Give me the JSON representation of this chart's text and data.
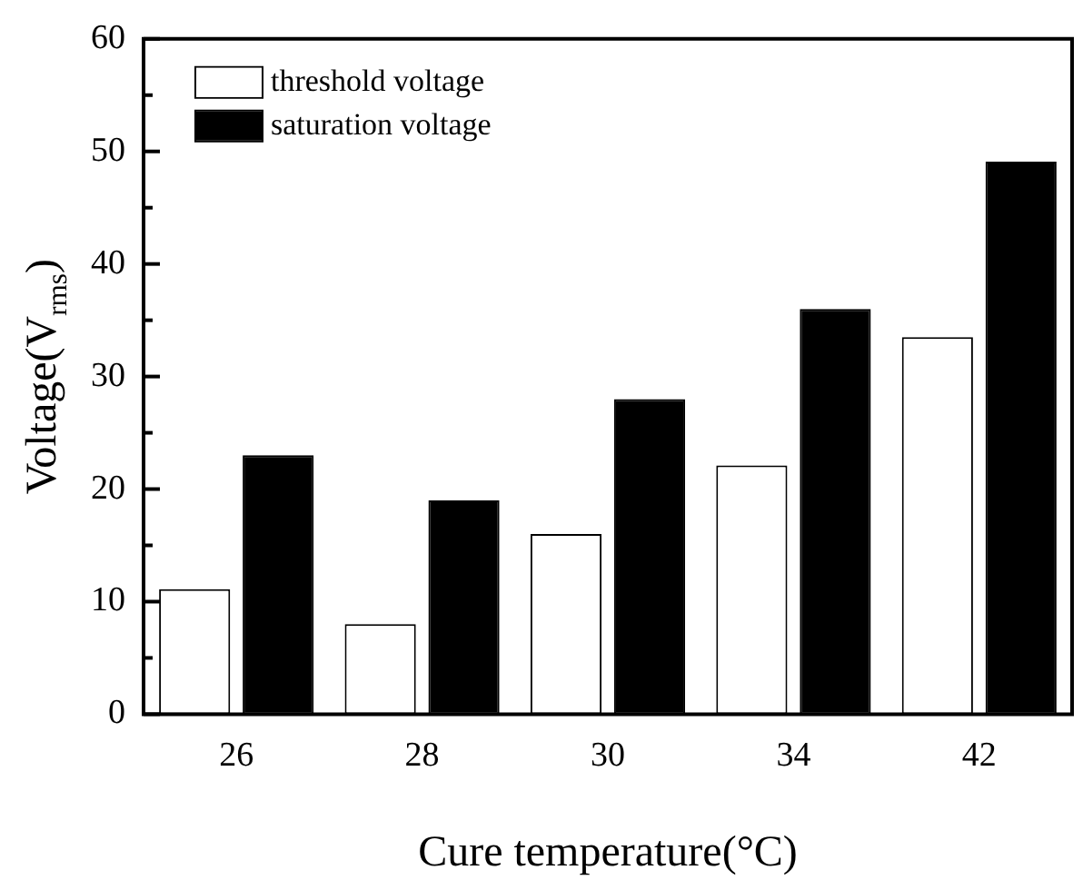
{
  "chart_data": {
    "type": "bar",
    "xlabel": "Cure temperature(°C)",
    "ylabel": "Voltage(V$_{rms}$)",
    "categories": [
      "26",
      "28",
      "30",
      "34",
      "42"
    ],
    "series": [
      {
        "name": "threshold voltage",
        "color": "#ffffff",
        "values": [
          11.1,
          8,
          16,
          22.1,
          33.5
        ]
      },
      {
        "name": "saturation voltage",
        "color": "#000000",
        "values": [
          23,
          19,
          28,
          36,
          49.1
        ]
      }
    ],
    "ylim": [
      0,
      60
    ],
    "yticks": [
      0,
      {
        "value": 5,
        "label": null
      },
      10,
      {
        "value": 15,
        "label": null
      },
      20,
      {
        "value": 25,
        "label": null
      },
      30,
      {
        "value": 35,
        "label": null
      },
      40,
      {
        "value": 45,
        "label": null
      },
      50,
      {
        "value": 55,
        "label": null
      },
      60
    ],
    "grid": false,
    "legend": "top left"
  }
}
